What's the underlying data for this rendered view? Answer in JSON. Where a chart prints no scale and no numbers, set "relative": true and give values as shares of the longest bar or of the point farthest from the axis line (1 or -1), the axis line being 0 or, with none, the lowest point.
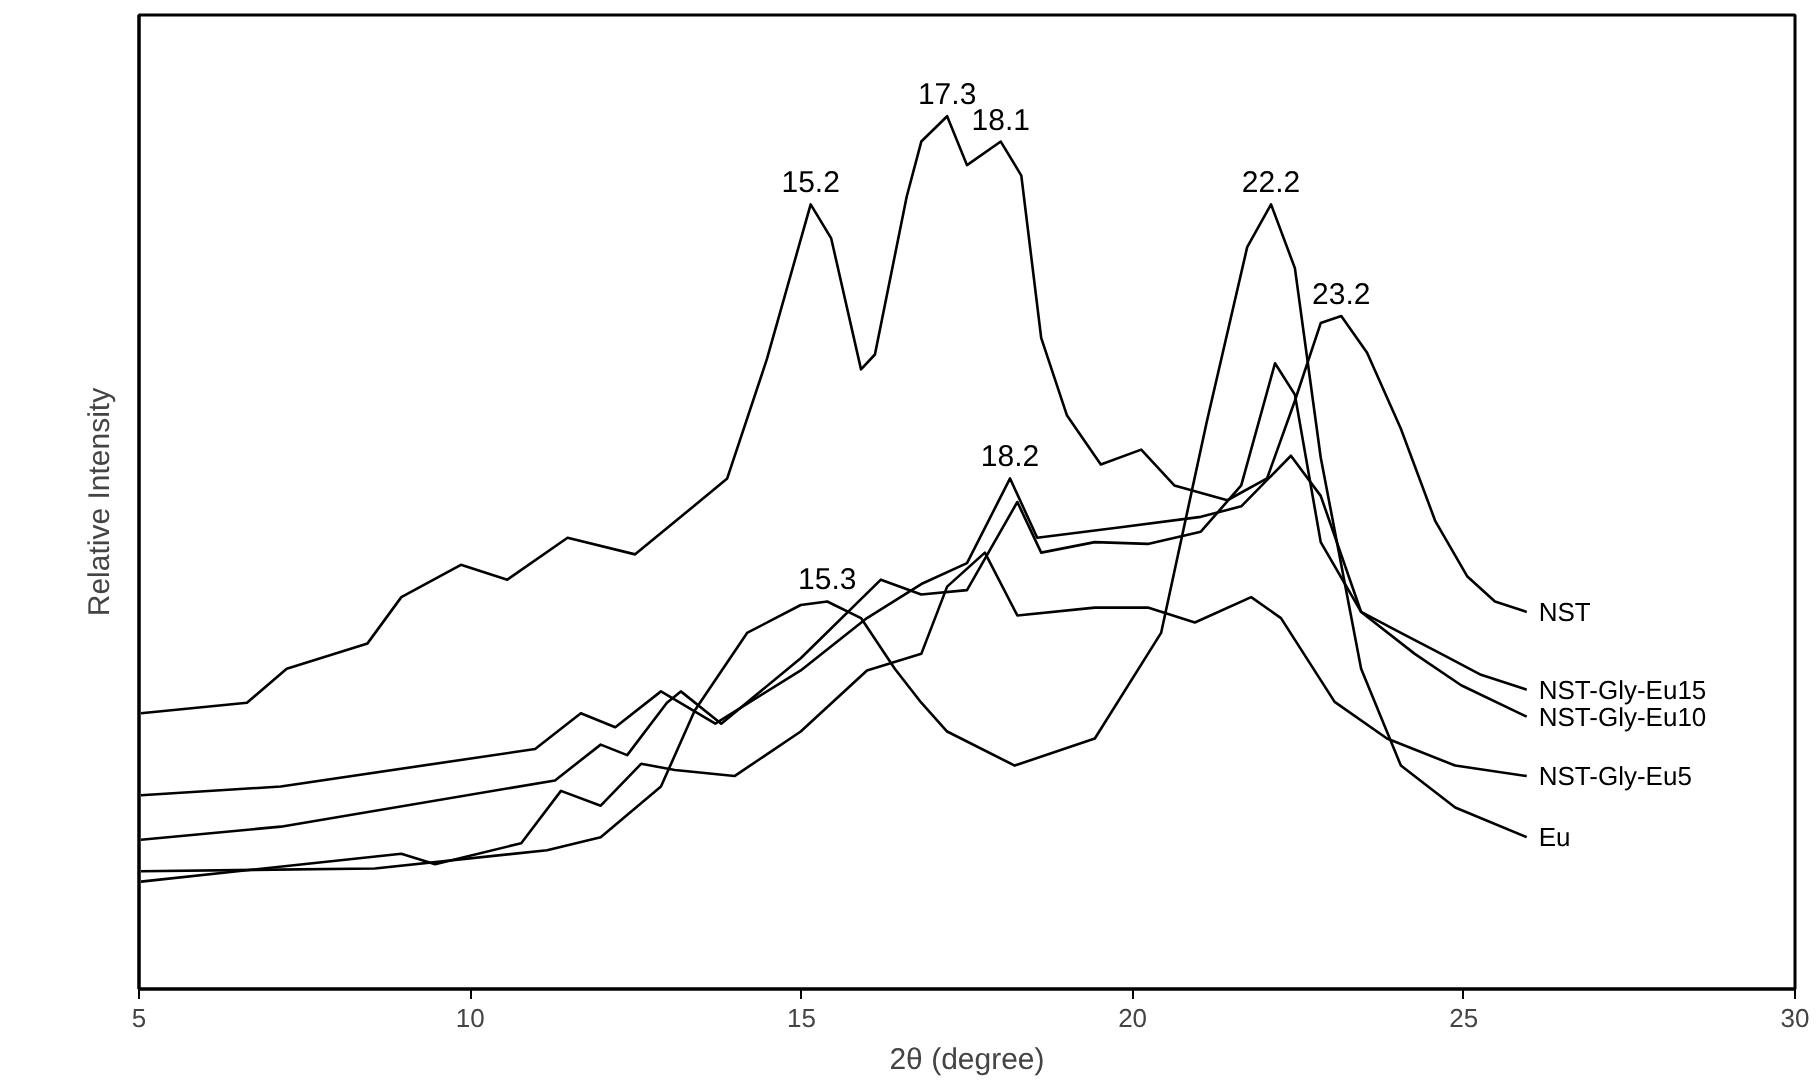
{
  "chart_data": {
    "type": "line",
    "relative": true,
    "xlabel": "2θ (degree)",
    "ylabel": "Relative Intensity",
    "xlim": [
      5,
      30
    ],
    "xticks": [
      5,
      10,
      15,
      20,
      25,
      30
    ],
    "grid": false,
    "marker": "none",
    "line_style": "solid",
    "series": [
      {
        "name": "NST",
        "color": "#000000",
        "x": [
          5.03,
          6.63,
          7.23,
          8.45,
          8.96,
          9.86,
          10.56,
          11.47,
          12.49,
          13.18,
          13.88,
          14.48,
          15.14,
          15.45,
          15.9,
          16.11,
          16.59,
          16.81,
          17.2,
          17.5,
          18.01,
          18.32,
          18.62,
          19.01,
          19.52,
          20.13,
          20.63,
          21.43,
          22.03,
          22.45,
          22.84,
          23.15,
          23.54,
          24.05,
          24.57,
          25.05,
          25.47,
          25.95
        ],
        "values": [
          0.316,
          0.328,
          0.367,
          0.396,
          0.449,
          0.486,
          0.469,
          0.517,
          0.498,
          0.541,
          0.585,
          0.722,
          0.899,
          0.86,
          0.71,
          0.727,
          0.908,
          0.971,
          1.0,
          0.944,
          0.971,
          0.932,
          0.746,
          0.657,
          0.601,
          0.618,
          0.577,
          0.56,
          0.585,
          0.674,
          0.763,
          0.771,
          0.729,
          0.642,
          0.536,
          0.473,
          0.444,
          0.432
        ]
      },
      {
        "name": "NST-Gly-Eu15",
        "color": "#000000",
        "x": [
          5.03,
          7.14,
          10.98,
          11.67,
          12.19,
          12.88,
          13.7,
          14.99,
          15.99,
          16.81,
          17.5,
          18.15,
          18.56,
          19.82,
          21.03,
          21.64,
          22.39,
          22.84,
          23.45,
          24.05,
          24.66,
          25.26,
          25.95
        ],
        "values": [
          0.222,
          0.232,
          0.275,
          0.316,
          0.3,
          0.341,
          0.304,
          0.365,
          0.425,
          0.464,
          0.488,
          0.585,
          0.517,
          0.529,
          0.541,
          0.553,
          0.611,
          0.565,
          0.432,
          0.408,
          0.384,
          0.36,
          0.343
        ]
      },
      {
        "name": "NST-Gly-Eu10",
        "color": "#000000",
        "x": [
          5.03,
          7.14,
          11.28,
          11.97,
          12.37,
          12.97,
          13.18,
          13.79,
          14.99,
          16.2,
          16.81,
          17.5,
          18.26,
          18.62,
          19.43,
          20.23,
          21.03,
          21.64,
          22.15,
          22.45,
          22.84,
          23.45,
          24.26,
          24.96,
          25.95
        ],
        "values": [
          0.171,
          0.186,
          0.239,
          0.28,
          0.268,
          0.328,
          0.341,
          0.304,
          0.379,
          0.469,
          0.452,
          0.457,
          0.558,
          0.5,
          0.512,
          0.51,
          0.524,
          0.577,
          0.717,
          0.681,
          0.512,
          0.432,
          0.384,
          0.348,
          0.312
        ]
      },
      {
        "name": "NST-Gly-Eu5",
        "color": "#000000",
        "x": [
          5.03,
          8.96,
          9.47,
          10.77,
          11.37,
          11.97,
          12.58,
          13.09,
          13.99,
          14.99,
          15.99,
          16.81,
          17.2,
          17.77,
          18.26,
          19.43,
          20.23,
          20.94,
          21.79,
          22.24,
          23.05,
          23.84,
          24.87,
          25.95
        ],
        "values": [
          0.123,
          0.155,
          0.143,
          0.167,
          0.227,
          0.21,
          0.258,
          0.251,
          0.244,
          0.295,
          0.365,
          0.384,
          0.461,
          0.5,
          0.428,
          0.437,
          0.437,
          0.42,
          0.449,
          0.425,
          0.329,
          0.287,
          0.256,
          0.244
        ]
      },
      {
        "name": "Eu",
        "color": "#000000",
        "x": [
          5.03,
          8.56,
          11.16,
          11.97,
          12.88,
          13.39,
          14.18,
          14.99,
          15.39,
          15.9,
          16.41,
          16.81,
          17.2,
          18.22,
          19.43,
          20.43,
          21.12,
          21.73,
          22.09,
          22.45,
          22.84,
          23.45,
          24.05,
          24.87,
          25.95
        ],
        "values": [
          0.135,
          0.138,
          0.159,
          0.174,
          0.232,
          0.319,
          0.408,
          0.44,
          0.444,
          0.425,
          0.367,
          0.328,
          0.295,
          0.256,
          0.287,
          0.408,
          0.65,
          0.85,
          0.899,
          0.826,
          0.609,
          0.367,
          0.256,
          0.208,
          0.174
        ]
      }
    ],
    "annotations": [
      {
        "text": "15.2",
        "x": 15.14,
        "y": 0.899
      },
      {
        "text": "17.3",
        "x": 17.2,
        "y": 1.0
      },
      {
        "text": "18.1",
        "x": 18.01,
        "y": 0.971
      },
      {
        "text": "22.2",
        "x": 22.09,
        "y": 0.899
      },
      {
        "text": "23.2",
        "x": 23.15,
        "y": 0.771
      },
      {
        "text": "18.2",
        "x": 18.15,
        "y": 0.585
      },
      {
        "text": "15.3",
        "x": 15.39,
        "y": 0.444
      }
    ]
  }
}
